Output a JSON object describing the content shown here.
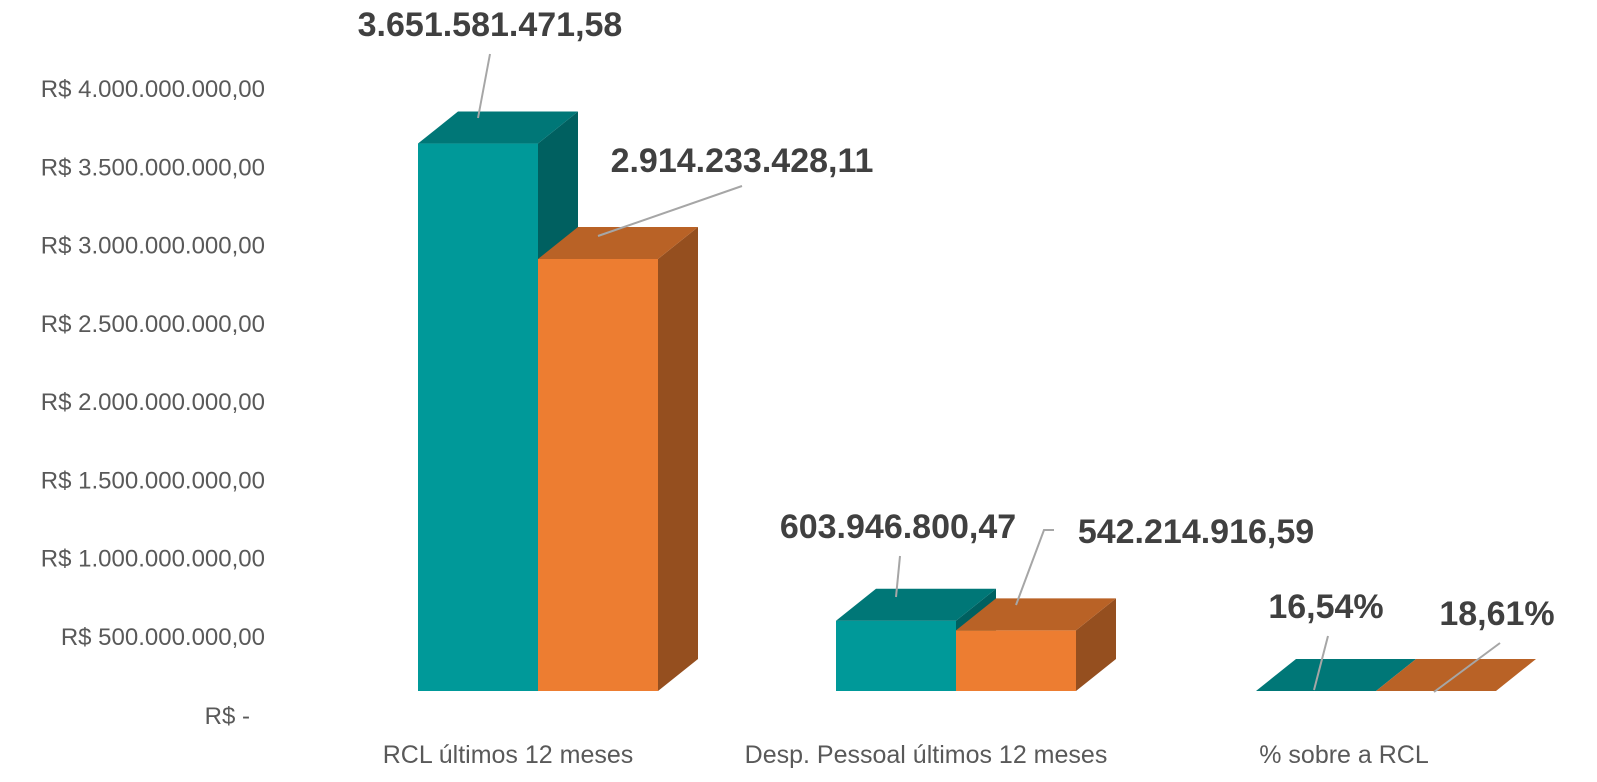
{
  "chart_data": {
    "type": "bar",
    "variant": "3d-clustered-column",
    "categories": [
      "RCL últimos 12 meses",
      "Desp. Pessoal últimos 12 meses",
      "% sobre a RCL"
    ],
    "series": [
      {
        "color": "#009999",
        "values": [
          3651581471.58,
          603946800.47,
          16.54
        ],
        "data_labels": [
          "3.651.581.471,58",
          "603.946.800,47",
          "16,54%"
        ]
      },
      {
        "color": "#ED7D31",
        "values": [
          2914233428.11,
          542214916.59,
          18.61
        ],
        "data_labels": [
          "2.914.233.428,11",
          "542.214.916,59",
          "18,61%"
        ]
      }
    ],
    "ylim": [
      0,
      4000000000
    ],
    "yticks": [
      {
        "value": 4000000000,
        "label": "R$ 4.000.000.000,00"
      },
      {
        "value": 3500000000,
        "label": "R$ 3.500.000.000,00"
      },
      {
        "value": 3000000000,
        "label": "R$ 3.000.000.000,00"
      },
      {
        "value": 2500000000,
        "label": "R$ 2.500.000.000,00"
      },
      {
        "value": 2000000000,
        "label": "R$ 2.000.000.000,00"
      },
      {
        "value": 1500000000,
        "label": "R$ 1.500.000.000,00"
      },
      {
        "value": 1000000000,
        "label": "R$ 1.000.000.000,00"
      },
      {
        "value": 500000000,
        "label": "R$ 500.000.000,00"
      },
      {
        "value": 0,
        "label": "R$ -"
      }
    ],
    "grid": false,
    "legend": "none",
    "title": ""
  }
}
